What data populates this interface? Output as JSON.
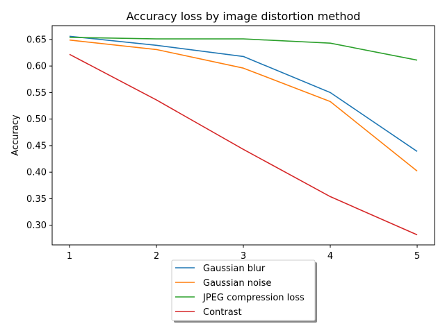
{
  "chart_data": {
    "type": "line",
    "title": "Accuracy loss by image distortion method",
    "xlabel": "",
    "ylabel": "Accuracy",
    "x": [
      1,
      2,
      3,
      4,
      5
    ],
    "xticks": [
      "1",
      "2",
      "3",
      "4",
      "5"
    ],
    "yticks": [
      "0.30",
      "0.35",
      "0.40",
      "0.45",
      "0.50",
      "0.55",
      "0.60",
      "0.65"
    ],
    "xlim": [
      0.8,
      5.2
    ],
    "ylim": [
      0.263,
      0.676
    ],
    "grid": false,
    "legend_position": "below",
    "series": [
      {
        "name": "Gaussian blur",
        "color": "#1f77b4",
        "values": [
          0.656,
          0.639,
          0.618,
          0.55,
          0.439
        ]
      },
      {
        "name": "Gaussian noise",
        "color": "#ff7f0e",
        "values": [
          0.649,
          0.631,
          0.596,
          0.533,
          0.402
        ]
      },
      {
        "name": "JPEG compression loss",
        "color": "#2ca02c",
        "values": [
          0.654,
          0.651,
          0.651,
          0.643,
          0.611
        ]
      },
      {
        "name": "Contrast",
        "color": "#d62728",
        "values": [
          0.622,
          0.536,
          0.443,
          0.354,
          0.282
        ]
      }
    ]
  }
}
